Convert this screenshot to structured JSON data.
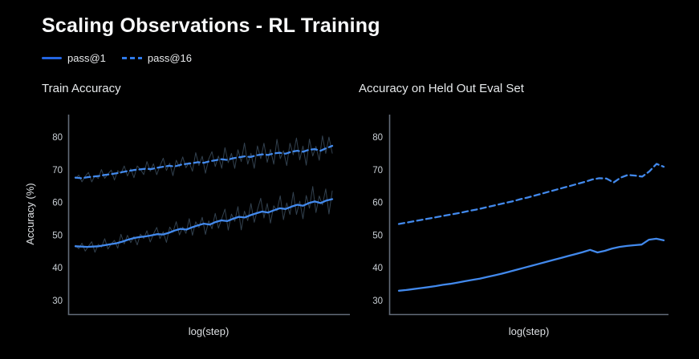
{
  "page": {
    "title": "Scaling Observations - RL Training"
  },
  "legend": {
    "items": [
      {
        "label": "pass@1",
        "line_style": "solid"
      },
      {
        "label": "pass@16",
        "line_style": "dashed"
      }
    ]
  },
  "colors": {
    "background": "#000000",
    "title_text": "#f8f9fa",
    "accent_blue": "#4289ec",
    "legend_solid_blue": "#2365e1",
    "raw_noise_line": "#32414f",
    "axis_line": "#636c79",
    "tick_label": "#c9cfd5",
    "axis_title": "#dde0e3"
  },
  "chart_data": [
    {
      "type": "line",
      "title": "Train Accuracy",
      "xlabel": "log(step)",
      "ylabel": "Accuracy (%)",
      "yticks": [
        30,
        40,
        50,
        60,
        70,
        80
      ],
      "ylim": [
        26,
        87
      ],
      "xlim_note": "x axis is log(step); no tick labels shown",
      "grid": false,
      "legend_position": "figure top-left",
      "series": [
        {
          "name": "pass@1",
          "line": "solid",
          "values": [
            46.6,
            46.5,
            46.4,
            46.5,
            46.6,
            46.9,
            47.2,
            47.5,
            48.0,
            48.6,
            49.1,
            49.4,
            49.6,
            49.9,
            50.3,
            50.2,
            50.7,
            51.4,
            51.9,
            51.7,
            52.4,
            53.0,
            53.5,
            53.2,
            54.0,
            54.5,
            54.3,
            55.0,
            55.6,
            55.4,
            56.1,
            56.7,
            57.2,
            56.9,
            57.6,
            58.2,
            58.0,
            58.7,
            59.3,
            59.0,
            59.8,
            60.3,
            59.8,
            60.6,
            61.0
          ]
        },
        {
          "name": "pass@16",
          "line": "dashed",
          "values": [
            67.6,
            67.4,
            67.7,
            67.9,
            68.1,
            68.4,
            68.6,
            68.9,
            69.3,
            69.6,
            69.9,
            70.1,
            70.3,
            70.2,
            70.6,
            70.9,
            71.2,
            71.0,
            71.5,
            71.8,
            72.0,
            72.3,
            72.1,
            72.6,
            72.9,
            73.2,
            73.0,
            73.5,
            73.8,
            74.1,
            73.9,
            74.4,
            74.7,
            74.5,
            75.0,
            75.2,
            74.9,
            75.5,
            75.8,
            75.5,
            76.1,
            76.3,
            75.8,
            76.6,
            77.3
          ]
        },
        {
          "name": "pass@1 raw per-step",
          "line": "raw-noise",
          "base_series": "pass@1",
          "noise_amp": [
            0.8,
            1.4
          ],
          "noise_offsets": [
            0.4,
            -0.9,
            1.3,
            -1.6,
            0.2,
            1.8,
            -2.1,
            0.7,
            -0.5,
            2.3,
            -1.5,
            0.1,
            1.1,
            -1.8,
            2.6,
            -1.0,
            1.5,
            -1.2,
            0.5,
            -2.4,
            0.9,
            -0.6,
            1.7,
            -2.0,
            0.3,
            2.1,
            -1.3,
            0.8,
            -2.7,
            1.6,
            -0.3,
            2.5,
            -1.7,
            0.6,
            -1.1,
            2.8,
            -2.3,
            1.2,
            -0.7,
            1.9,
            -2.9,
            1.0,
            -1.4,
            2.4,
            -1.9,
            0.5,
            3.1,
            -2.5,
            1.4,
            -0.8,
            2.7,
            -3.3,
            1.6,
            -1.1,
            2.9,
            -2.1,
            0.8,
            3.4,
            -1.5,
            2.2,
            -2.8,
            1.1,
            -0.4,
            3.0,
            -2.6,
            1.3,
            -1.7,
            3.2,
            -2.2,
            0.9,
            -3.0,
            2.0,
            -1.2,
            3.5,
            -2.4,
            1.5,
            -0.6,
            2.6,
            -3.1,
            1.8
          ]
        },
        {
          "name": "pass@16 raw per-step",
          "line": "raw-noise",
          "base_series": "pass@16",
          "noise_amp": [
            0.8,
            1.4
          ],
          "noise_offsets": [
            -0.4,
            1.1,
            -1.4,
            0.5,
            1.7,
            -1.9,
            0.3,
            -0.9,
            2.1,
            -1.2,
            0.2,
            1.4,
            -2.2,
            0.8,
            -0.4,
            1.9,
            -1.6,
            0.6,
            -2.5,
            1.2,
            0.0,
            -1.8,
            2.3,
            -0.7,
            1.5,
            -2.1,
            0.4,
            2.6,
            -1.3,
            0.8,
            -2.8,
            1.7,
            -0.5,
            2.2,
            -1.1,
            0.3,
            -2.3,
            2.8,
            -0.9,
            1.8,
            -3.0,
            0.7,
            2.5,
            -1.7,
            1.0,
            -2.4,
            3.2,
            -0.8,
            1.4,
            -2.7,
            2.0,
            -1.2,
            3.4,
            -1.9,
            0.9,
            -3.1,
            2.3,
            -1.0,
            2.8,
            -1.8,
            1.2,
            -2.6,
            3.3,
            -1.4,
            0.6,
            -2.9,
            2.1,
            -0.8,
            3.0,
            -2.0,
            1.3,
            -3.3,
            2.4,
            -1.5,
            0.7,
            -2.2,
            3.1,
            -1.1,
            2.2,
            -1.6
          ]
        }
      ]
    },
    {
      "type": "line",
      "title": "Accuracy on Held Out Eval Set",
      "xlabel": "log(step)",
      "ylabel": "",
      "yticks": [
        30,
        40,
        50,
        60,
        70,
        80
      ],
      "ylim": [
        26,
        87
      ],
      "xlim_note": "x axis is log(step); no tick labels shown",
      "grid": false,
      "series": [
        {
          "name": "pass@1",
          "line": "solid",
          "values": [
            33.0,
            33.2,
            33.5,
            33.8,
            34.1,
            34.4,
            34.8,
            35.1,
            35.5,
            35.9,
            36.3,
            36.7,
            37.2,
            37.7,
            38.2,
            38.8,
            39.4,
            40.0,
            40.6,
            41.2,
            41.8,
            42.4,
            43.0,
            43.6,
            44.2,
            44.8,
            45.5,
            44.7,
            45.2,
            45.9,
            46.4,
            46.7,
            46.9,
            47.1,
            48.6,
            48.9,
            48.4
          ]
        },
        {
          "name": "pass@16",
          "line": "dashed",
          "values": [
            53.4,
            53.8,
            54.2,
            54.6,
            55.0,
            55.4,
            55.8,
            56.2,
            56.6,
            57.0,
            57.5,
            57.9,
            58.4,
            58.9,
            59.4,
            59.9,
            60.4,
            61.0,
            61.5,
            62.1,
            62.7,
            63.3,
            63.9,
            64.5,
            65.1,
            65.7,
            66.3,
            67.0,
            67.4,
            67.3,
            66.1,
            67.6,
            68.4,
            68.2,
            67.9,
            69.5,
            71.8,
            70.9
          ]
        }
      ]
    }
  ]
}
